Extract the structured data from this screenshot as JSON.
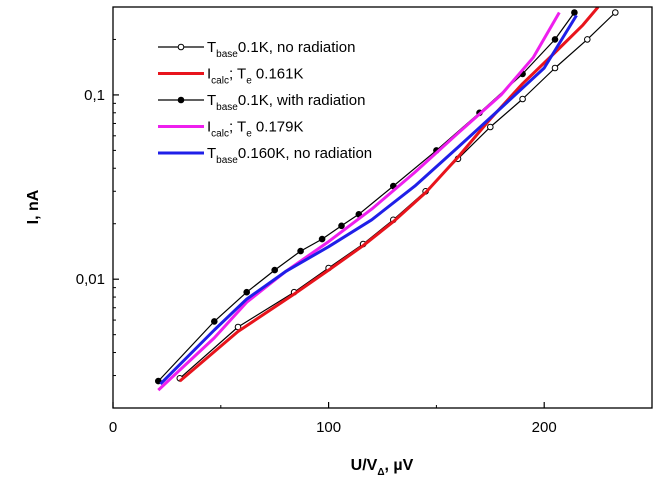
{
  "chart_data": {
    "type": "line",
    "xlabel": {
      "main": "U/V",
      "sub": "Δ",
      "unit": ", µV"
    },
    "ylabel": "I, nA",
    "xlim": [
      0,
      250
    ],
    "ylim": [
      0.002,
      0.3
    ],
    "yscale": "log",
    "x_ticks": [
      0,
      100,
      200
    ],
    "x_tick_labels": [
      "0",
      "100",
      "200"
    ],
    "y_ticks": [
      0.01,
      0.1
    ],
    "y_tick_labels": [
      "0,01",
      "0,1"
    ],
    "grid": false,
    "legend_position": "top-left",
    "series": [
      {
        "legend": {
          "main": "T",
          "sub": "base",
          "rest": "0.1K, no radiation"
        },
        "color": "#000000",
        "marker": "open-circle",
        "x": [
          31,
          58,
          84,
          100,
          116,
          130,
          145,
          160,
          175,
          190,
          205,
          220,
          233
        ],
        "y": [
          0.0029,
          0.0055,
          0.0085,
          0.0115,
          0.0155,
          0.021,
          0.03,
          0.045,
          0.067,
          0.095,
          0.14,
          0.2,
          0.28
        ]
      },
      {
        "legend": {
          "main": "I",
          "sub": "calc",
          "rest": "; T",
          "sub2": "e",
          "rest2": " 0.161K"
        },
        "color": "#e8141c",
        "marker": "none",
        "x": [
          31,
          58,
          84,
          100,
          116,
          130,
          145,
          160,
          175,
          190,
          205,
          218,
          225
        ],
        "y": [
          0.0028,
          0.0052,
          0.0083,
          0.0112,
          0.0152,
          0.0205,
          0.0295,
          0.046,
          0.074,
          0.115,
          0.17,
          0.24,
          0.3
        ]
      },
      {
        "legend": {
          "main": "T",
          "sub": "base",
          "rest": "0.1K, with radiation"
        },
        "color": "#000000",
        "marker": "filled-circle",
        "x": [
          21,
          47,
          62,
          75,
          87,
          97,
          106,
          114,
          130,
          150,
          170,
          190,
          205,
          214
        ],
        "y": [
          0.0028,
          0.0059,
          0.0085,
          0.0112,
          0.0142,
          0.0165,
          0.0195,
          0.0225,
          0.032,
          0.05,
          0.08,
          0.13,
          0.2,
          0.28
        ]
      },
      {
        "legend": {
          "main": "I",
          "sub": "calc",
          "rest": "; T",
          "sub2": "e",
          "rest2": " 0.179K"
        },
        "color": "#ee1fee",
        "marker": "none",
        "x": [
          21,
          47,
          62,
          80,
          100,
          120,
          140,
          160,
          180,
          195,
          207
        ],
        "y": [
          0.0025,
          0.0048,
          0.0075,
          0.011,
          0.016,
          0.024,
          0.038,
          0.062,
          0.1,
          0.16,
          0.28
        ]
      },
      {
        "legend": {
          "main": "T",
          "sub": "base",
          "rest": "0.160K, no radiation"
        },
        "color": "#1f1fe8",
        "marker": "none",
        "x": [
          22,
          47,
          62,
          80,
          100,
          120,
          140,
          160,
          180,
          200,
          215
        ],
        "y": [
          0.0027,
          0.0053,
          0.0078,
          0.011,
          0.015,
          0.021,
          0.032,
          0.052,
          0.085,
          0.14,
          0.27
        ]
      }
    ]
  }
}
